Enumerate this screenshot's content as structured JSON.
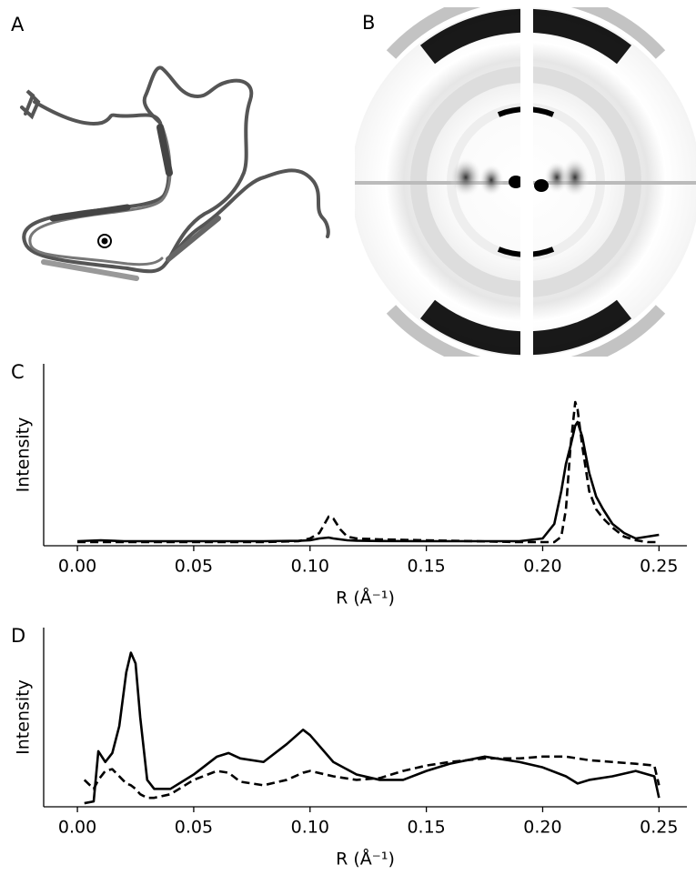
{
  "panel_labels": [
    "A",
    "B",
    "C",
    "D"
  ],
  "chart_data": [
    {
      "type": "line",
      "ylabel": "Intensity",
      "xlabel": "R (Å⁻¹)",
      "x": [
        0,
        0.01,
        0.02,
        0.04,
        0.06,
        0.08,
        0.095,
        0.1,
        0.104,
        0.108,
        0.11,
        0.113,
        0.116,
        0.12,
        0.13,
        0.15,
        0.17,
        0.19,
        0.2,
        0.205,
        0.208,
        0.21,
        0.212,
        0.214,
        0.215,
        0.217,
        0.22,
        0.223,
        0.226,
        0.23,
        0.235,
        0.24,
        0.245,
        0.25
      ],
      "series": [
        {
          "color": "#000000",
          "linestyle": "solid",
          "values": [
            0.025,
            0.03,
            0.025,
            0.025,
            0.025,
            0.025,
            0.027,
            0.03,
            0.04,
            0.045,
            0.04,
            0.035,
            0.03,
            0.028,
            0.026,
            0.025,
            0.025,
            0.025,
            0.04,
            0.12,
            0.3,
            0.45,
            0.55,
            0.66,
            0.68,
            0.6,
            0.4,
            0.27,
            0.2,
            0.12,
            0.07,
            0.04,
            0.05,
            0.06
          ]
        },
        {
          "color": "#000000",
          "linestyle": "dashed",
          "values": [
            0.02,
            0.02,
            0.02,
            0.02,
            0.02,
            0.02,
            0.025,
            0.04,
            0.07,
            0.16,
            0.15,
            0.09,
            0.05,
            0.04,
            0.035,
            0.03,
            0.025,
            0.02,
            0.02,
            0.02,
            0.05,
            0.2,
            0.55,
            0.79,
            0.75,
            0.55,
            0.3,
            0.2,
            0.15,
            0.1,
            0.05,
            0.03,
            0.02,
            0.02
          ]
        }
      ],
      "xlim": [
        -0.0145,
        0.262
      ],
      "ylim": [
        0,
        1
      ],
      "xticks": [
        {
          "value": 0,
          "label": "0.00"
        },
        {
          "value": 0.05,
          "label": "0.05"
        },
        {
          "value": 0.1,
          "label": "0.10"
        },
        {
          "value": 0.15,
          "label": "0.15"
        },
        {
          "value": 0.2,
          "label": "0.20"
        },
        {
          "value": 0.25,
          "label": "0.25"
        }
      ]
    },
    {
      "type": "line",
      "ylabel": "Intensity",
      "xlabel": "R (Å⁻¹)",
      "x": [
        0.003,
        0.007,
        0.009,
        0.012,
        0.015,
        0.018,
        0.021,
        0.023,
        0.025,
        0.027,
        0.03,
        0.033,
        0.04,
        0.05,
        0.06,
        0.065,
        0.07,
        0.08,
        0.09,
        0.097,
        0.1,
        0.11,
        0.12,
        0.13,
        0.14,
        0.15,
        0.16,
        0.175,
        0.19,
        0.2,
        0.21,
        0.215,
        0.22,
        0.23,
        0.24,
        0.248,
        0.25
      ],
      "series": [
        {
          "color": "#000000",
          "linestyle": "solid",
          "values": [
            0.02,
            0.03,
            0.31,
            0.25,
            0.3,
            0.45,
            0.75,
            0.86,
            0.8,
            0.5,
            0.15,
            0.1,
            0.1,
            0.18,
            0.28,
            0.3,
            0.27,
            0.25,
            0.35,
            0.43,
            0.4,
            0.25,
            0.18,
            0.15,
            0.15,
            0.2,
            0.24,
            0.28,
            0.25,
            0.22,
            0.17,
            0.13,
            0.15,
            0.17,
            0.2,
            0.17,
            0.05
          ]
        },
        {
          "color": "#000000",
          "linestyle": "dashed",
          "values": [
            0.15,
            0.1,
            0.15,
            0.2,
            0.21,
            0.17,
            0.13,
            0.12,
            0.1,
            0.07,
            0.05,
            0.05,
            0.07,
            0.15,
            0.2,
            0.19,
            0.14,
            0.12,
            0.15,
            0.19,
            0.2,
            0.17,
            0.15,
            0.16,
            0.2,
            0.23,
            0.25,
            0.27,
            0.27,
            0.28,
            0.28,
            0.27,
            0.26,
            0.25,
            0.24,
            0.23,
            0.12
          ]
        }
      ],
      "xlim": [
        -0.0145,
        0.262
      ],
      "ylim": [
        0,
        1
      ],
      "xticks": [
        {
          "value": 0,
          "label": "0.00"
        },
        {
          "value": 0.05,
          "label": "0.05"
        },
        {
          "value": 0.1,
          "label": "0.10"
        },
        {
          "value": 0.15,
          "label": "0.15"
        },
        {
          "value": 0.2,
          "label": "0.20"
        },
        {
          "value": 0.25,
          "label": "0.25"
        }
      ]
    }
  ]
}
